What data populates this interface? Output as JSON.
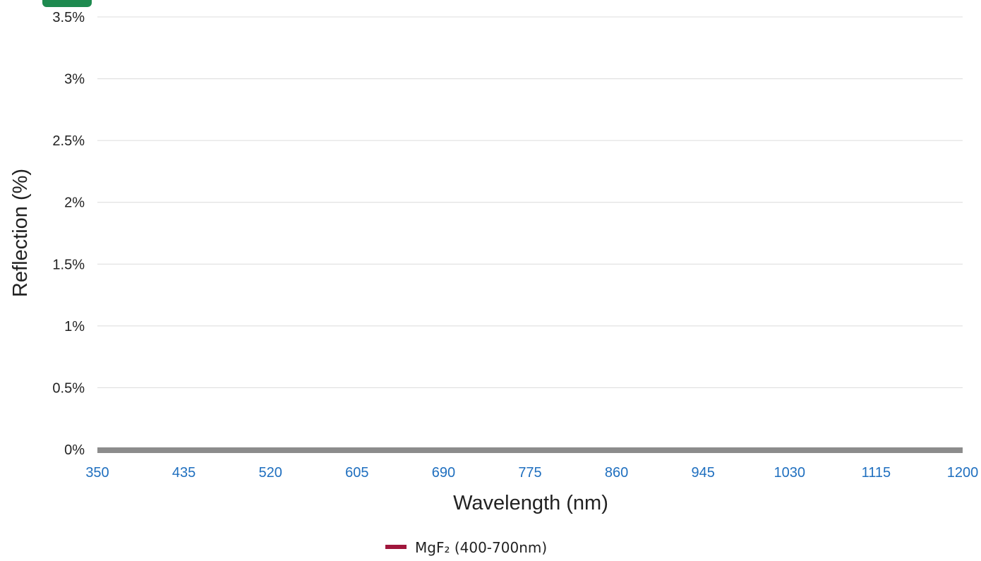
{
  "badge": {
    "color": "#1e8a4f"
  },
  "chart_data": {
    "type": "line",
    "title": "",
    "xlabel": "Wavelength (nm)",
    "ylabel": "Reflection (%)",
    "xlim": [
      350,
      1200
    ],
    "ylim": [
      0,
      3.5
    ],
    "x_ticks": [
      350,
      435,
      520,
      605,
      690,
      775,
      860,
      945,
      1030,
      1115,
      1200
    ],
    "x_tick_labels": [
      "350",
      "435",
      "520",
      "605",
      "690",
      "775",
      "860",
      "945",
      "1030",
      "1115",
      "1200"
    ],
    "y_ticks": [
      0,
      0.5,
      1,
      1.5,
      2,
      2.5,
      3,
      3.5
    ],
    "y_tick_labels": [
      "0%",
      "0.5%",
      "1%",
      "1.5%",
      "2%",
      "2.5%",
      "3%",
      "3.5%"
    ],
    "grid": true,
    "legend_position": "bottom-center",
    "baseline_color": "#8c8c8c",
    "series": [
      {
        "name": "MgF₂ (400-700nm)",
        "color": "#a0163c",
        "x": [],
        "y": []
      }
    ]
  }
}
